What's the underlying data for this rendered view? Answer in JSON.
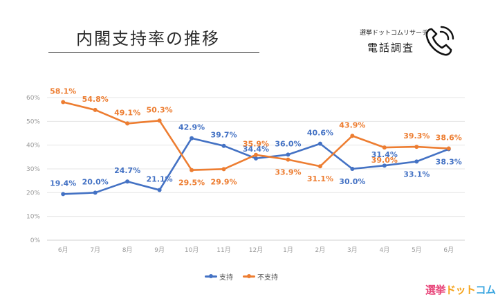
{
  "title": "内閣支持率の推移",
  "brand_small": "選挙ドットコムリサーチ",
  "survey_type": "電話調査",
  "logo": {
    "part1": "選挙",
    "part2": "ドット",
    "part3": "コム"
  },
  "colors": {
    "support": "#4472c4",
    "nonsupport": "#ed7d31"
  },
  "icons": {
    "phone": "phone-icon"
  },
  "chart_data": {
    "type": "line",
    "categories": [
      "6月",
      "7月",
      "8月",
      "9月",
      "10月",
      "11月",
      "12月",
      "1月",
      "2月",
      "3月",
      "4月",
      "5月",
      "6月"
    ],
    "ylim": [
      0,
      60
    ],
    "yticks": [
      "0%",
      "10%",
      "20%",
      "30%",
      "40%",
      "50%",
      "60%"
    ],
    "grid": true,
    "legend_position": "bottom",
    "series": [
      {
        "name": "支持",
        "color": "#4472c4",
        "values": [
          19.4,
          20.0,
          24.7,
          21.1,
          42.9,
          39.7,
          34.4,
          36.0,
          40.6,
          30.0,
          31.4,
          33.1,
          38.3
        ],
        "labels": [
          "19.4%",
          "20.0%",
          "24.7%",
          "21.1%",
          "42.9%",
          "39.7%",
          "34.4%",
          "36.0%",
          "40.6%",
          "30.0%",
          "31.4%",
          "33.1%",
          "38.3%"
        ]
      },
      {
        "name": "不支持",
        "color": "#ed7d31",
        "values": [
          58.1,
          54.8,
          49.1,
          50.3,
          29.5,
          29.9,
          35.9,
          33.9,
          31.1,
          43.9,
          39.0,
          39.3,
          38.6
        ],
        "labels": [
          "58.1%",
          "54.8%",
          "49.1%",
          "50.3%",
          "29.5%",
          "29.9%",
          "35.9%",
          "33.9%",
          "31.1%",
          "43.9%",
          "39.0%",
          "39.3%",
          "38.6%"
        ]
      }
    ]
  }
}
